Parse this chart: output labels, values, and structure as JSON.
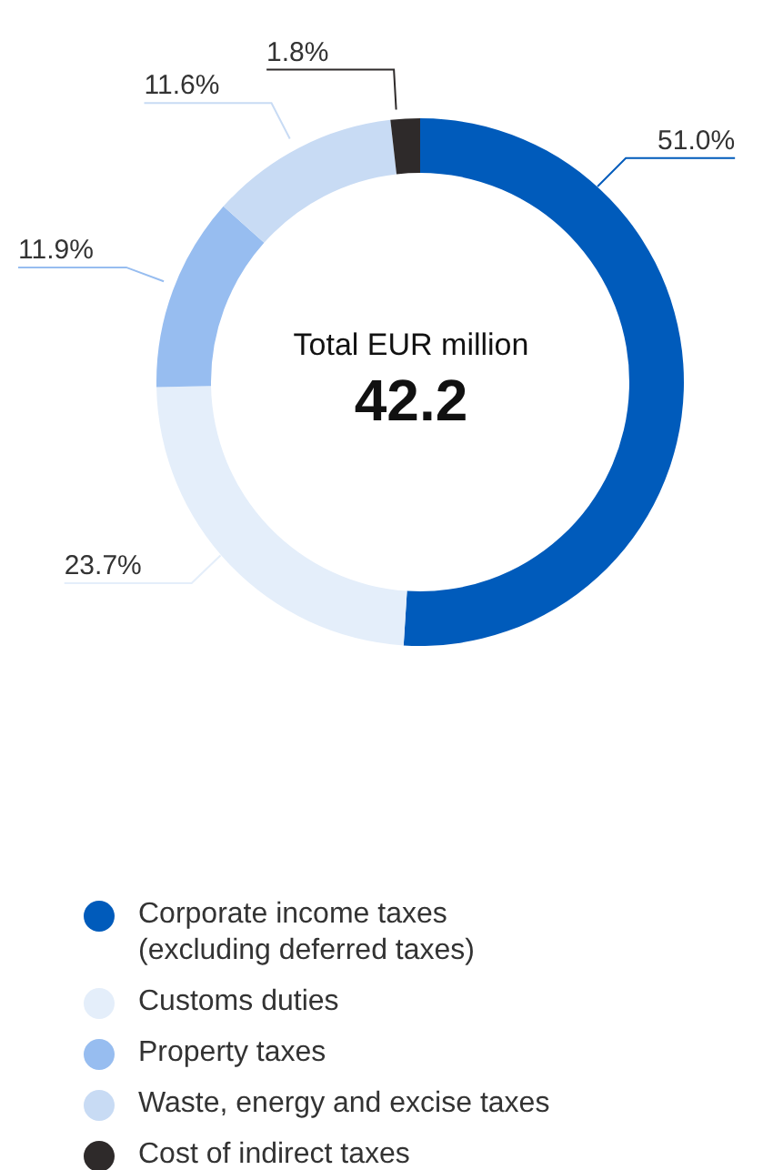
{
  "chart_data": {
    "type": "donut",
    "categories": [
      "Corporate income taxes (excluding deferred taxes)",
      "Customs duties",
      "Property taxes",
      "Waste, energy and excise taxes",
      "Cost of indirect taxes"
    ],
    "values": [
      51.0,
      23.7,
      11.9,
      11.6,
      1.8
    ],
    "colors": [
      "#005bbb",
      "#e4eefa",
      "#97bdf0",
      "#c8dbf4",
      "#2e2a2a"
    ],
    "value_labels": [
      "51.0%",
      "23.7%",
      "11.9%",
      "11.6%",
      "1.8%"
    ],
    "annotations": [
      "Total EUR million",
      "42.2"
    ],
    "legend": "bottom"
  }
}
